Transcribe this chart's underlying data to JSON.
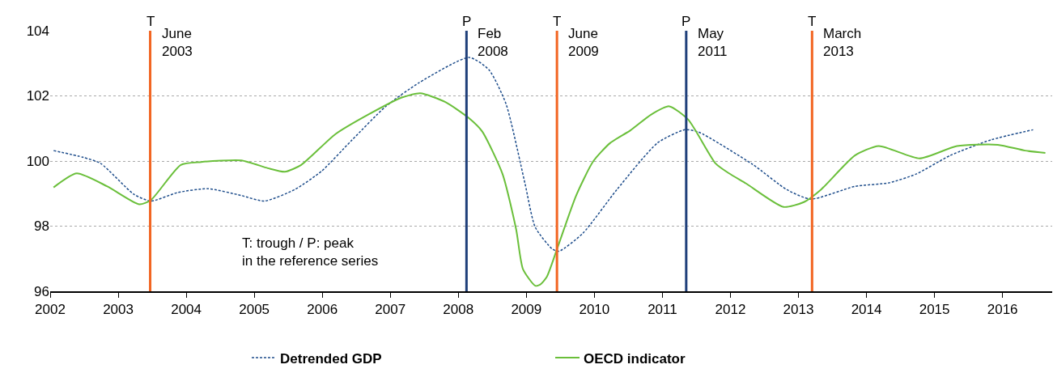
{
  "chart_data": {
    "type": "line",
    "xlim": [
      2002,
      2016.73
    ],
    "xticks": [
      2002,
      2003,
      2004,
      2005,
      2006,
      2007,
      2008,
      2009,
      2010,
      2011,
      2012,
      2013,
      2014,
      2015,
      2016
    ],
    "ylim": [
      96,
      104
    ],
    "yticks": [
      96,
      98,
      100,
      102,
      104
    ],
    "grid": "y",
    "legend": "bottom",
    "series": [
      {
        "name": "Detrended GDP",
        "color": "#1f4e8c",
        "line_style": "dashed",
        "x": [
          2002.05,
          2002.49,
          2002.74,
          2003.23,
          2003.48,
          2003.87,
          2004.32,
          2004.81,
          2005.15,
          2005.6,
          2005.99,
          2006.43,
          2006.93,
          2007.42,
          2008.16,
          2008.45,
          2008.7,
          2008.98,
          2009.13,
          2009.38,
          2009.48,
          2009.83,
          2010.33,
          2010.93,
          2011.33,
          2011.53,
          2012.33,
          2012.83,
          2013.18,
          2013.83,
          2014.33,
          2014.73,
          2015.23,
          2015.83,
          2016.45
        ],
        "values": [
          100.32,
          100.11,
          99.93,
          98.98,
          98.77,
          99.03,
          99.15,
          98.94,
          98.77,
          99.13,
          99.69,
          100.63,
          101.67,
          102.4,
          103.18,
          102.8,
          101.76,
          99.31,
          97.97,
          97.3,
          97.23,
          97.78,
          99.12,
          100.56,
          100.96,
          100.89,
          99.89,
          99.12,
          98.83,
          99.22,
          99.33,
          99.6,
          100.17,
          100.65,
          100.96
        ]
      },
      {
        "name": "OECD indicator",
        "color": "#6abf3a",
        "line_style": "solid",
        "x": [
          2002.05,
          2002.39,
          2002.84,
          2003.31,
          2003.48,
          2003.92,
          2004.22,
          2004.81,
          2005.2,
          2005.45,
          2005.69,
          2006.19,
          2006.68,
          2007.17,
          2007.44,
          2007.81,
          2008.16,
          2008.35,
          2008.65,
          2008.85,
          2008.95,
          2009.13,
          2009.2,
          2009.3,
          2009.46,
          2009.73,
          2009.98,
          2010.23,
          2010.53,
          2010.83,
          2011.1,
          2011.38,
          2011.78,
          2011.98,
          2012.23,
          2012.78,
          2013.08,
          2013.33,
          2013.83,
          2014.18,
          2014.78,
          2015.33,
          2015.93,
          2016.33,
          2016.63
        ],
        "values": [
          99.19,
          99.62,
          99.22,
          98.67,
          98.8,
          99.88,
          99.97,
          100.02,
          99.78,
          99.67,
          99.88,
          100.82,
          101.43,
          101.95,
          102.08,
          101.81,
          101.31,
          100.91,
          99.6,
          97.9,
          96.68,
          96.17,
          96.2,
          96.44,
          97.35,
          98.93,
          99.98,
          100.55,
          100.94,
          101.42,
          101.68,
          101.27,
          99.93,
          99.62,
          99.31,
          98.59,
          98.74,
          99.12,
          100.17,
          100.46,
          100.08,
          100.46,
          100.5,
          100.32,
          100.25
        ]
      }
    ],
    "ref_lines": [
      {
        "axis": "x",
        "value": 2003.47,
        "label": "T",
        "color": "#f26522"
      },
      {
        "axis": "x",
        "value": 2008.12,
        "label": "P",
        "color": "#1f3f7a"
      },
      {
        "axis": "x",
        "value": 2009.45,
        "label": "T",
        "color": "#f26522"
      },
      {
        "axis": "x",
        "value": 2011.35,
        "label": "P",
        "color": "#1f3f7a"
      },
      {
        "axis": "x",
        "value": 2013.2,
        "label": "T",
        "color": "#f26522"
      }
    ],
    "annotations": [
      {
        "text": "June\n2003",
        "x": 2003.47,
        "y": 104
      },
      {
        "text": "Feb\n2008",
        "x": 2008.12,
        "y": 104
      },
      {
        "text": "June\n2009",
        "x": 2009.45,
        "y": 104
      },
      {
        "text": "May\n2011",
        "x": 2011.35,
        "y": 104
      },
      {
        "text": "March\n2013",
        "x": 2013.2,
        "y": 104
      },
      "T: trough / P: peak\nin the reference series"
    ]
  }
}
